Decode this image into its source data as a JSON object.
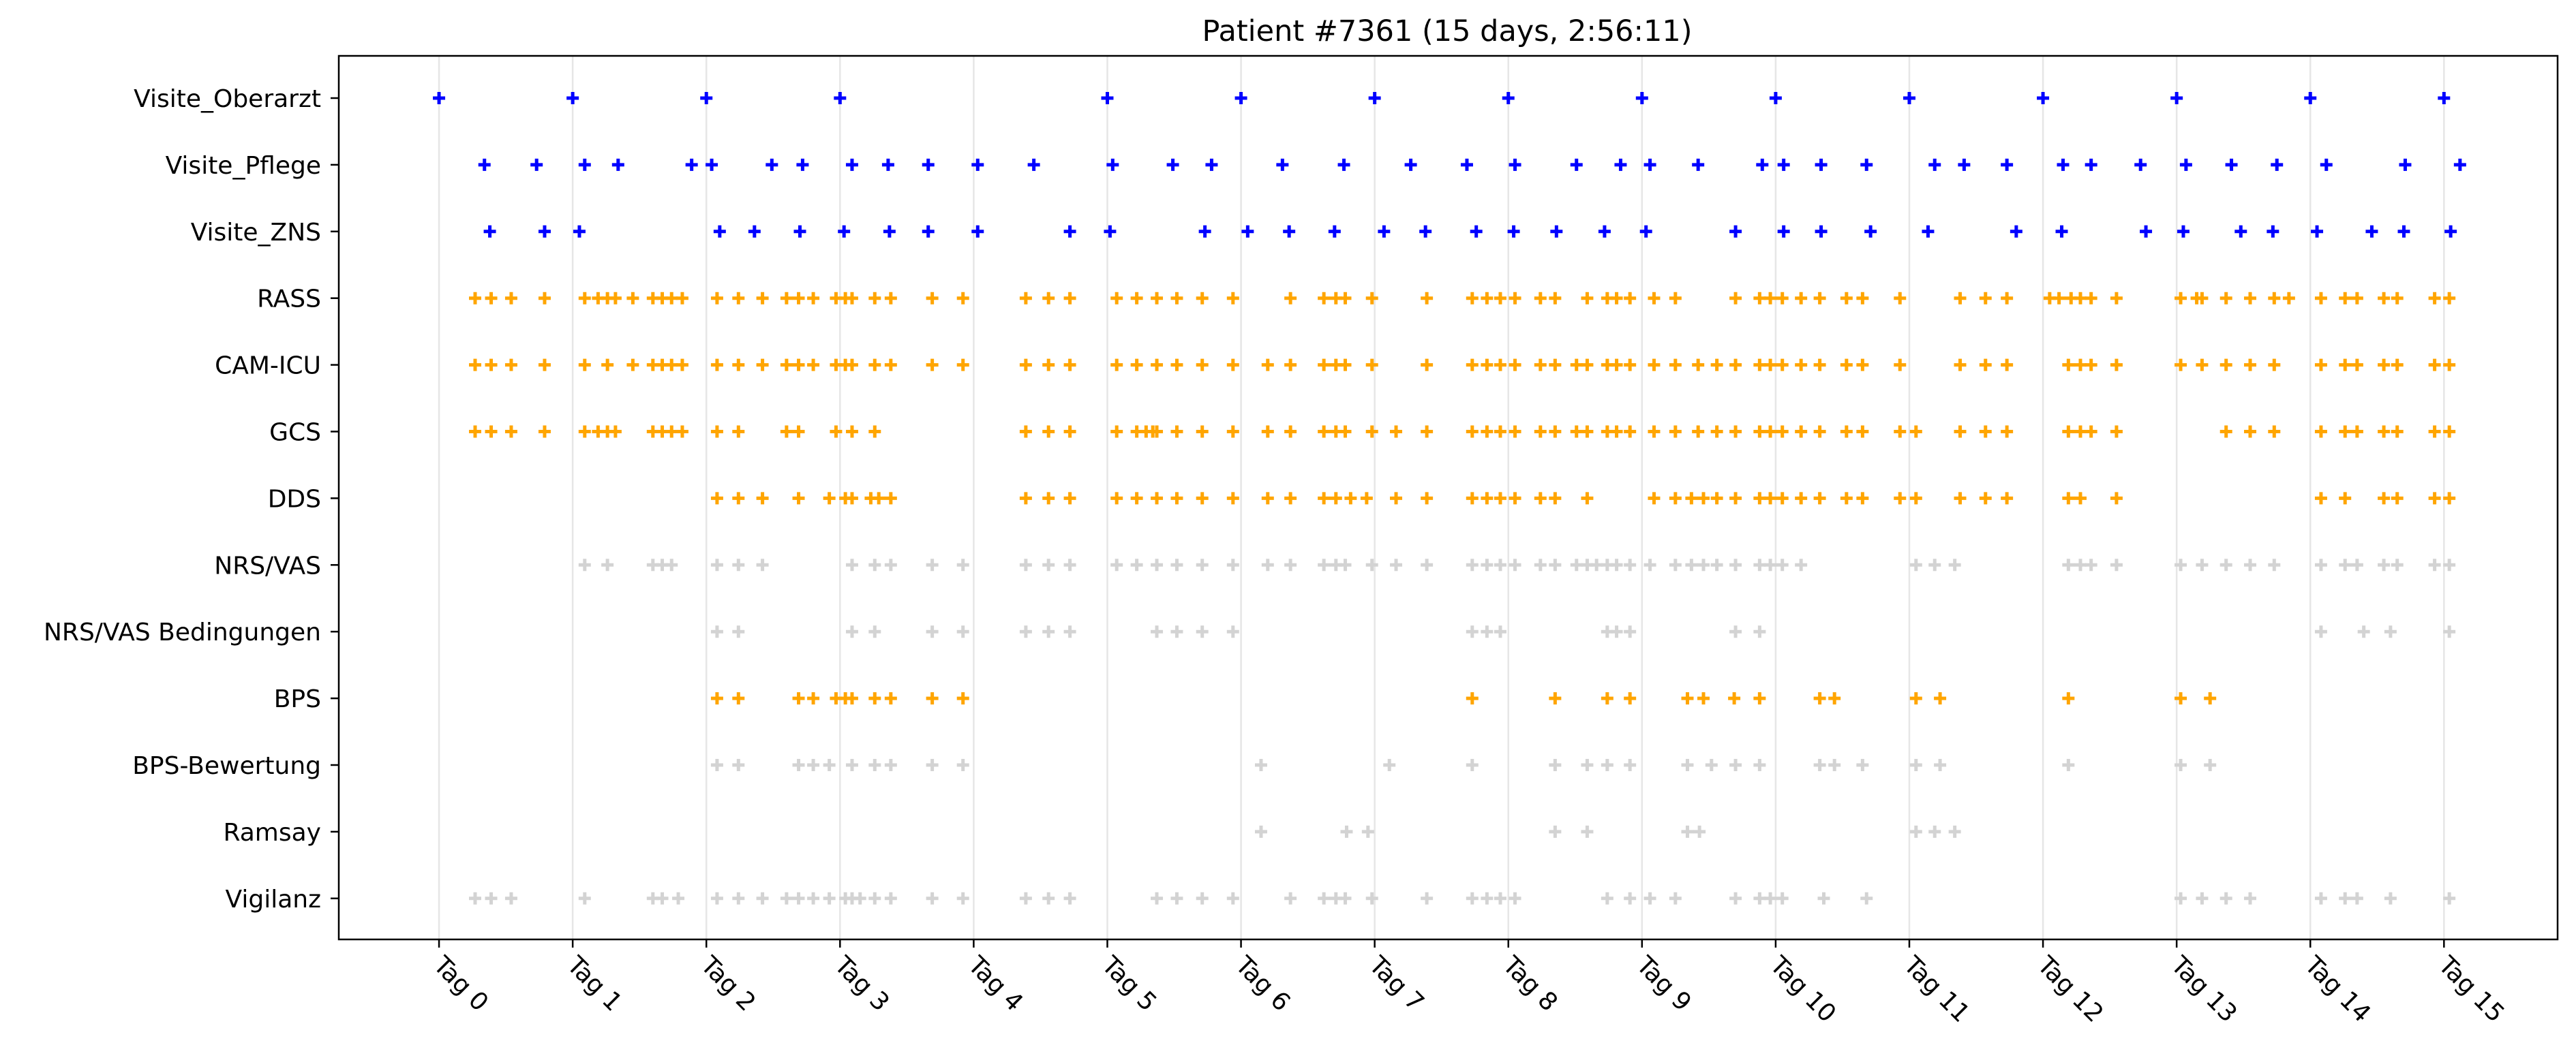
{
  "chart_data": {
    "type": "scatter",
    "title": "Patient #7361 (15 days, 2:56:11)",
    "xlabel": "",
    "ylabel": "",
    "xlim": [
      -0.75,
      15.85
    ],
    "grid": "vertical lines at day ticks",
    "legend": "none",
    "marker": "+",
    "x_unit": "days",
    "x_ticks": [
      {
        "value": 0,
        "label": "Tag 0"
      },
      {
        "value": 1,
        "label": "Tag 1"
      },
      {
        "value": 2,
        "label": "Tag 2"
      },
      {
        "value": 3,
        "label": "Tag 3"
      },
      {
        "value": 4,
        "label": "Tag 4"
      },
      {
        "value": 5,
        "label": "Tag 5"
      },
      {
        "value": 6,
        "label": "Tag 6"
      },
      {
        "value": 7,
        "label": "Tag 7"
      },
      {
        "value": 8,
        "label": "Tag 8"
      },
      {
        "value": 9,
        "label": "Tag 9"
      },
      {
        "value": 10,
        "label": "Tag 10"
      },
      {
        "value": 11,
        "label": "Tag 11"
      },
      {
        "value": 12,
        "label": "Tag 12"
      },
      {
        "value": 13,
        "label": "Tag 13"
      },
      {
        "value": 14,
        "label": "Tag 14"
      },
      {
        "value": 15,
        "label": "Tag 15"
      }
    ],
    "series": [
      {
        "label": "Visite_Oberarzt",
        "color": "#0000ff",
        "x": [
          0.0,
          1.0,
          2.0,
          3.0,
          5.0,
          6.0,
          7.0,
          8.0,
          9.0,
          10.0,
          11.0,
          12.0,
          13.0,
          14.0,
          15.0
        ]
      },
      {
        "label": "Visite_Pflege",
        "color": "#0000ff",
        "x": [
          0.34,
          0.73,
          1.09,
          1.34,
          1.89,
          2.04,
          2.49,
          2.72,
          3.09,
          3.36,
          3.66,
          4.03,
          4.45,
          5.04,
          5.49,
          5.78,
          6.31,
          6.77,
          7.27,
          7.69,
          8.05,
          8.51,
          8.84,
          9.06,
          9.42,
          9.9,
          10.06,
          10.34,
          10.68,
          11.19,
          11.41,
          11.73,
          12.15,
          12.36,
          12.73,
          13.07,
          13.41,
          13.75,
          14.12,
          14.71,
          15.12
        ]
      },
      {
        "label": "Visite_ZNS",
        "color": "#0000ff",
        "x": [
          0.38,
          0.79,
          1.05,
          2.1,
          2.36,
          2.7,
          3.03,
          3.37,
          3.66,
          4.03,
          4.72,
          5.02,
          5.73,
          6.05,
          6.36,
          6.7,
          7.07,
          7.38,
          7.76,
          8.04,
          8.36,
          8.72,
          9.03,
          9.7,
          10.06,
          10.34,
          10.71,
          11.14,
          11.8,
          12.14,
          12.77,
          13.05,
          13.48,
          13.72,
          14.05,
          14.46,
          14.7,
          15.05
        ]
      },
      {
        "label": "RASS",
        "color": "#ffa500",
        "x": [
          0.27,
          0.39,
          0.54,
          0.79,
          1.09,
          1.19,
          1.26,
          1.32,
          1.45,
          1.6,
          1.67,
          1.74,
          1.82,
          2.08,
          2.24,
          2.42,
          2.6,
          2.69,
          2.8,
          2.97,
          3.04,
          3.09,
          3.26,
          3.38,
          3.69,
          3.92,
          4.39,
          4.56,
          4.72,
          5.07,
          5.22,
          5.37,
          5.52,
          5.71,
          5.94,
          6.37,
          6.62,
          6.71,
          6.78,
          6.98,
          7.39,
          7.73,
          7.84,
          7.94,
          8.05,
          8.24,
          8.35,
          8.59,
          8.74,
          8.81,
          8.91,
          9.09,
          9.25,
          9.7,
          9.88,
          9.96,
          10.05,
          10.19,
          10.33,
          10.53,
          10.65,
          10.93,
          11.38,
          11.57,
          11.73,
          12.05,
          12.12,
          12.21,
          12.28,
          12.36,
          12.55,
          13.03,
          13.15,
          13.19,
          13.37,
          13.55,
          13.73,
          13.84,
          14.08,
          14.26,
          14.35,
          14.55,
          14.65,
          14.93,
          15.04
        ]
      },
      {
        "label": "CAM-ICU",
        "color": "#ffa500",
        "x": [
          0.27,
          0.39,
          0.54,
          0.79,
          1.09,
          1.26,
          1.45,
          1.6,
          1.67,
          1.74,
          1.82,
          2.08,
          2.24,
          2.42,
          2.6,
          2.69,
          2.8,
          2.97,
          3.04,
          3.09,
          3.26,
          3.38,
          3.69,
          3.92,
          4.39,
          4.56,
          4.72,
          5.07,
          5.22,
          5.37,
          5.52,
          5.71,
          5.94,
          6.2,
          6.37,
          6.62,
          6.71,
          6.78,
          6.98,
          7.39,
          7.73,
          7.84,
          7.94,
          8.05,
          8.24,
          8.35,
          8.51,
          8.59,
          8.74,
          8.81,
          8.91,
          9.09,
          9.25,
          9.42,
          9.56,
          9.7,
          9.88,
          9.96,
          10.05,
          10.19,
          10.33,
          10.53,
          10.65,
          10.93,
          11.38,
          11.57,
          11.73,
          12.19,
          12.28,
          12.36,
          12.55,
          13.03,
          13.19,
          13.37,
          13.55,
          13.73,
          14.08,
          14.26,
          14.35,
          14.55,
          14.65,
          14.93,
          15.04
        ]
      },
      {
        "label": "GCS",
        "color": "#ffa500",
        "x": [
          0.27,
          0.39,
          0.54,
          0.79,
          1.09,
          1.19,
          1.26,
          1.32,
          1.6,
          1.67,
          1.74,
          1.82,
          2.08,
          2.24,
          2.6,
          2.69,
          2.97,
          3.09,
          3.26,
          4.39,
          4.56,
          4.72,
          5.07,
          5.22,
          5.29,
          5.34,
          5.37,
          5.52,
          5.71,
          5.94,
          6.2,
          6.37,
          6.62,
          6.71,
          6.78,
          6.98,
          7.16,
          7.39,
          7.73,
          7.84,
          7.94,
          8.05,
          8.24,
          8.35,
          8.51,
          8.59,
          8.74,
          8.81,
          8.91,
          9.09,
          9.25,
          9.42,
          9.56,
          9.7,
          9.88,
          9.96,
          10.05,
          10.19,
          10.33,
          10.53,
          10.65,
          10.93,
          11.05,
          11.38,
          11.57,
          11.73,
          12.19,
          12.28,
          12.36,
          12.55,
          13.37,
          13.55,
          13.73,
          14.08,
          14.26,
          14.35,
          14.55,
          14.65,
          14.93,
          15.04
        ]
      },
      {
        "label": "DDS",
        "color": "#ffa500",
        "x": [
          2.08,
          2.24,
          2.42,
          2.69,
          2.92,
          3.04,
          3.09,
          3.23,
          3.29,
          3.38,
          4.39,
          4.56,
          4.72,
          5.07,
          5.22,
          5.37,
          5.52,
          5.71,
          5.94,
          6.2,
          6.37,
          6.62,
          6.71,
          6.82,
          6.94,
          7.16,
          7.39,
          7.73,
          7.84,
          7.94,
          8.05,
          8.24,
          8.35,
          8.59,
          9.09,
          9.25,
          9.37,
          9.46,
          9.56,
          9.7,
          9.88,
          9.96,
          10.05,
          10.19,
          10.33,
          10.53,
          10.65,
          10.93,
          11.05,
          11.38,
          11.57,
          11.73,
          12.19,
          12.28,
          12.55,
          14.08,
          14.26,
          14.55,
          14.65,
          14.93,
          15.04
        ]
      },
      {
        "label": "NRS/VAS",
        "color": "#d3d3d3",
        "x": [
          1.09,
          1.26,
          1.6,
          1.67,
          1.74,
          2.08,
          2.24,
          2.42,
          3.09,
          3.26,
          3.38,
          3.69,
          3.92,
          4.39,
          4.56,
          4.72,
          5.07,
          5.22,
          5.37,
          5.52,
          5.71,
          5.94,
          6.2,
          6.37,
          6.62,
          6.71,
          6.78,
          6.98,
          7.16,
          7.39,
          7.73,
          7.84,
          7.94,
          8.05,
          8.24,
          8.35,
          8.51,
          8.59,
          8.66,
          8.74,
          8.81,
          8.91,
          9.06,
          9.25,
          9.37,
          9.46,
          9.56,
          9.7,
          9.88,
          9.96,
          10.05,
          10.19,
          11.05,
          11.19,
          11.34,
          12.19,
          12.28,
          12.36,
          12.55,
          13.03,
          13.19,
          13.37,
          13.55,
          13.73,
          14.08,
          14.26,
          14.35,
          14.55,
          14.65,
          14.93,
          15.04
        ]
      },
      {
        "label": "NRS/VAS Bedingungen",
        "color": "#d3d3d3",
        "x": [
          2.08,
          2.24,
          3.09,
          3.26,
          3.69,
          3.92,
          4.39,
          4.56,
          4.72,
          5.37,
          5.52,
          5.71,
          5.94,
          7.73,
          7.84,
          7.94,
          8.74,
          8.81,
          8.91,
          9.7,
          9.88,
          14.08,
          14.4,
          14.6,
          15.04
        ]
      },
      {
        "label": "BPS",
        "color": "#ffa500",
        "x": [
          2.08,
          2.24,
          2.69,
          2.8,
          2.97,
          3.04,
          3.09,
          3.26,
          3.38,
          3.69,
          3.92,
          7.73,
          8.35,
          8.74,
          8.91,
          9.34,
          9.46,
          9.69,
          9.88,
          10.33,
          10.44,
          11.05,
          11.23,
          12.19,
          13.03,
          13.25
        ]
      },
      {
        "label": "BPS-Bewertung",
        "color": "#d3d3d3",
        "x": [
          2.08,
          2.24,
          2.69,
          2.8,
          2.92,
          3.09,
          3.26,
          3.38,
          3.69,
          3.92,
          6.15,
          7.11,
          7.73,
          8.35,
          8.59,
          8.74,
          8.91,
          9.34,
          9.52,
          9.7,
          9.88,
          10.33,
          10.44,
          10.65,
          11.05,
          11.23,
          12.19,
          13.03,
          13.25
        ]
      },
      {
        "label": "Ramsay",
        "color": "#d3d3d3",
        "x": [
          6.15,
          6.79,
          6.95,
          8.35,
          8.59,
          9.34,
          9.43,
          11.05,
          11.19,
          11.34
        ]
      },
      {
        "label": "Vigilanz",
        "color": "#d3d3d3",
        "x": [
          0.27,
          0.39,
          0.54,
          1.09,
          1.6,
          1.67,
          1.79,
          2.08,
          2.24,
          2.42,
          2.6,
          2.69,
          2.8,
          2.92,
          3.04,
          3.09,
          3.15,
          3.26,
          3.38,
          3.69,
          3.92,
          4.39,
          4.56,
          4.72,
          5.37,
          5.52,
          5.71,
          5.94,
          6.37,
          6.62,
          6.71,
          6.78,
          6.98,
          7.39,
          7.73,
          7.84,
          7.94,
          8.05,
          8.74,
          8.91,
          9.06,
          9.25,
          9.7,
          9.88,
          9.96,
          10.05,
          10.36,
          10.68,
          13.03,
          13.19,
          13.37,
          13.55,
          14.08,
          14.26,
          14.35,
          14.6,
          15.04
        ]
      }
    ]
  }
}
